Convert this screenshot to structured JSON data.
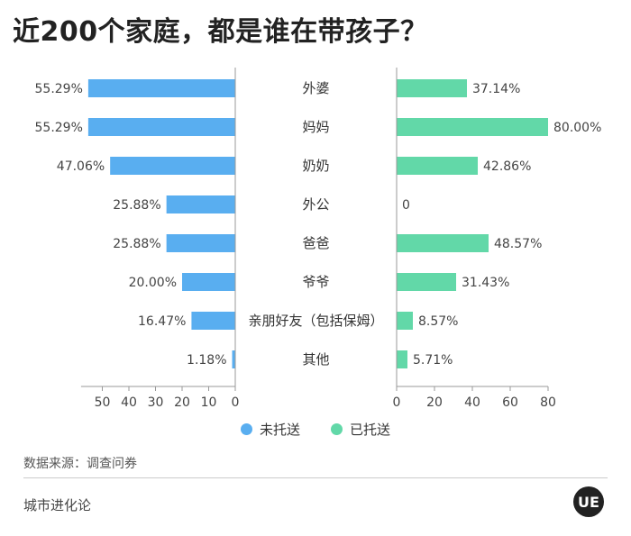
{
  "title": "近200个家庭，都是谁在带孩子？",
  "colors": {
    "left": "#59AEF0",
    "right": "#62D8A8",
    "axis": "#999999",
    "text": "#444444"
  },
  "chart_data": {
    "type": "bar",
    "orientation": "horizontal-butterfly",
    "categories": [
      "外婆",
      "妈妈",
      "奶奶",
      "外公",
      "爸爸",
      "爷爷",
      "亲朋好友（包括保姆）",
      "其他"
    ],
    "series": [
      {
        "name": "未托送",
        "side": "left",
        "values": [
          55.29,
          55.29,
          47.06,
          25.88,
          25.88,
          20.0,
          16.47,
          1.18
        ],
        "labels": [
          "55.29%",
          "55.29%",
          "47.06%",
          "25.88%",
          "25.88%",
          "20.00%",
          "16.47%",
          "1.18%"
        ],
        "xlim": [
          0,
          58
        ],
        "ticks": [
          50,
          40,
          30,
          20,
          10,
          0
        ]
      },
      {
        "name": "已托送",
        "side": "right",
        "values": [
          37.14,
          80.0,
          42.86,
          0,
          48.57,
          31.43,
          8.57,
          5.71
        ],
        "labels": [
          "37.14%",
          "80.00%",
          "42.86%",
          "0",
          "48.57%",
          "31.43%",
          "8.57%",
          "5.71%"
        ],
        "xlim": [
          0,
          80
        ],
        "ticks": [
          0,
          20,
          40,
          60,
          80
        ]
      }
    ],
    "legend_position": "bottom-center",
    "grid": false
  },
  "legend": [
    {
      "label": "未托送",
      "color": "#59AEF0"
    },
    {
      "label": "已托送",
      "color": "#62D8A8"
    }
  ],
  "source": "数据来源：调查问券",
  "brand": "城市进化论",
  "logo_text": "UE"
}
